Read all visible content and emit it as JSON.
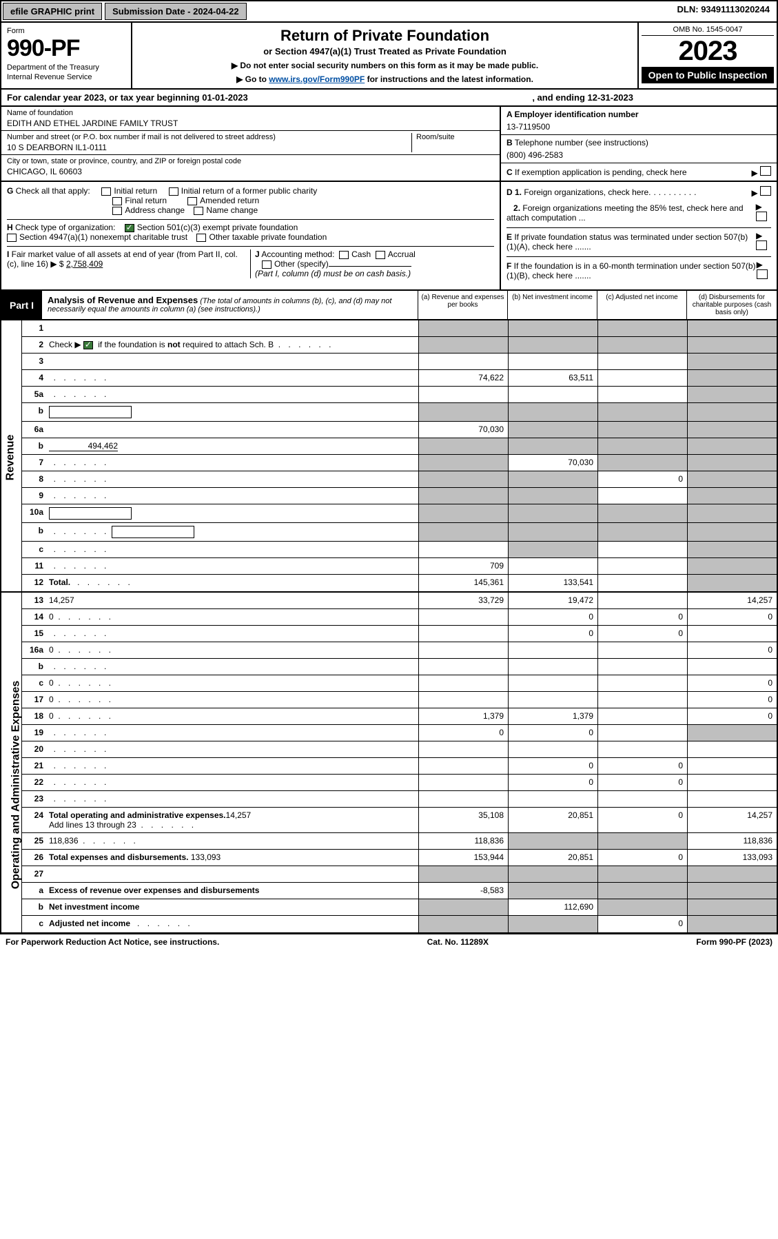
{
  "topbar": {
    "efile": "efile GRAPHIC print",
    "submission": "Submission Date - 2024-04-22",
    "dln": "DLN: 93491113020244"
  },
  "header": {
    "form_label": "Form",
    "form_number": "990-PF",
    "dept": "Department of the Treasury",
    "irs": "Internal Revenue Service",
    "title": "Return of Private Foundation",
    "subtitle": "or Section 4947(a)(1) Trust Treated as Private Foundation",
    "warn": "▶ Do not enter social security numbers on this form as it may be made public.",
    "goto_pre": "▶ Go to ",
    "goto_link": "www.irs.gov/Form990PF",
    "goto_post": " for instructions and the latest information.",
    "omb": "OMB No. 1545-0047",
    "year": "2023",
    "open": "Open to Public Inspection"
  },
  "calrow": {
    "text1": "For calendar year 2023, or tax year beginning 01-01-2023",
    "text2": ", and ending 12-31-2023"
  },
  "id": {
    "name_lbl": "Name of foundation",
    "name": "EDITH AND ETHEL JARDINE FAMILY TRUST",
    "addr_lbl": "Number and street (or P.O. box number if mail is not delivered to street address)",
    "room_lbl": "Room/suite",
    "addr": "10 S DEARBORN IL1-0111",
    "city_lbl": "City or town, state or province, country, and ZIP or foreign postal code",
    "city": "CHICAGO, IL  60603",
    "a_lbl": "A Employer identification number",
    "a_val": "13-7119500",
    "b_lbl": "B",
    "b_txt": " Telephone number (see instructions)",
    "b_val": "(800) 496-2583",
    "c_lbl": "C",
    "c_txt": " If exemption application is pending, check here"
  },
  "gh": {
    "g_lbl": "G",
    "g_txt": " Check all that apply:",
    "g1": "Initial return",
    "g2": "Initial return of a former public charity",
    "g3": "Final return",
    "g4": "Amended return",
    "g5": "Address change",
    "g6": "Name change",
    "h_lbl": "H",
    "h_txt": " Check type of organization:",
    "h1": "Section 501(c)(3) exempt private foundation",
    "h2": "Section 4947(a)(1) nonexempt charitable trust",
    "h3": "Other taxable private foundation",
    "i_lbl": "I",
    "i_txt": " Fair market value of all assets at end of year (from Part II, col. (c), line 16) ▶ $",
    "i_val": "2,758,409",
    "j_lbl": "J",
    "j_txt": " Accounting method:",
    "j1": "Cash",
    "j2": "Accrual",
    "j3": "Other (specify)",
    "j_note": "(Part I, column (d) must be on cash basis.)",
    "d1_lbl": "D 1.",
    "d1_txt": " Foreign organizations, check here",
    "d2_lbl": "2.",
    "d2_txt": " Foreign organizations meeting the 85% test, check here and attach computation ...",
    "e_lbl": "E",
    "e_txt": " If private foundation status was terminated under section 507(b)(1)(A), check here .......",
    "f_lbl": "F",
    "f_txt": " If the foundation is in a 60-month termination under section 507(b)(1)(B), check here ......."
  },
  "part1": {
    "label": "Part I",
    "title": "Analysis of Revenue and Expenses",
    "note": " (The total of amounts in columns (b), (c), and (d) may not necessarily equal the amounts in column (a) (see instructions).)",
    "col_a": "(a)  Revenue and expenses per books",
    "col_b": "(b)  Net investment income",
    "col_c": "(c)  Adjusted net income",
    "col_d": "(d)  Disbursements for charitable purposes (cash basis only)"
  },
  "rev_label": "Revenue",
  "exp_label": "Operating and Administrative Expenses",
  "rows": {
    "r1": {
      "n": "1",
      "d": "",
      "a": "",
      "b": "",
      "c": "",
      "ga": true,
      "gb": true,
      "gc": true,
      "gd": true
    },
    "r2": {
      "n": "2",
      "d_pre": "Check ▶ ",
      "d_post": " if the foundation is ",
      "d_bold": "not",
      "d_post2": " required to attach Sch. B",
      "dots": 1,
      "a": "",
      "b": "",
      "c": "",
      "d": "",
      "ga": true,
      "gb": true,
      "gc": true,
      "gd": true,
      "check": true
    },
    "r3": {
      "n": "3",
      "d": "",
      "a": "",
      "b": "",
      "c": "",
      "gd": true
    },
    "r4": {
      "n": "4",
      "d": "",
      "dots": 1,
      "a": "74,622",
      "b": "63,511",
      "c": "",
      "gd": true
    },
    "r5a": {
      "n": "5a",
      "d": "",
      "dots": 1,
      "a": "",
      "b": "",
      "c": "",
      "gd": true
    },
    "r5b": {
      "n": "b",
      "d": "",
      "inset": 120,
      "a": "",
      "b": "",
      "c": "",
      "ga": true,
      "gb": true,
      "gc": true,
      "gd": true
    },
    "r6a": {
      "n": "6a",
      "d": "",
      "a": "70,030",
      "b": "",
      "c": "",
      "gb": true,
      "gc": true,
      "gd": true
    },
    "r6b": {
      "n": "b",
      "d": "",
      "inset_val": "494,462",
      "a": "",
      "b": "",
      "c": "",
      "ga": true,
      "gb": true,
      "gc": true,
      "gd": true
    },
    "r7": {
      "n": "7",
      "d": "",
      "dots": 1,
      "a": "",
      "b": "70,030",
      "c": "",
      "ga": true,
      "gc": true,
      "gd": true
    },
    "r8": {
      "n": "8",
      "d": "",
      "dots": 1,
      "a": "",
      "b": "",
      "c": "0",
      "ga": true,
      "gb": true,
      "gd": true
    },
    "r9": {
      "n": "9",
      "d": "",
      "dots": 1,
      "a": "",
      "b": "",
      "c": "",
      "ga": true,
      "gb": true,
      "gd": true
    },
    "r10a": {
      "n": "10a",
      "d": "",
      "inset": 120,
      "a": "",
      "b": "",
      "c": "",
      "ga": true,
      "gb": true,
      "gc": true,
      "gd": true
    },
    "r10b": {
      "n": "b",
      "d": "",
      "dots": 1,
      "inset": 120,
      "a": "",
      "b": "",
      "c": "",
      "ga": true,
      "gb": true,
      "gc": true,
      "gd": true
    },
    "r10c": {
      "n": "c",
      "d": "",
      "dots": 1,
      "a": "",
      "b": "",
      "c": "",
      "gb": true,
      "gd": true
    },
    "r11": {
      "n": "11",
      "d": "",
      "dots": 1,
      "a": "709",
      "b": "",
      "c": "",
      "gd": true
    },
    "r12": {
      "n": "12",
      "d_bold_all": "Total. ",
      "d": "",
      "dots": 1,
      "a": "145,361",
      "b": "133,541",
      "c": "",
      "gd": true
    },
    "r13": {
      "n": "13",
      "d": "14,257",
      "a": "33,729",
      "b": "19,472",
      "c": ""
    },
    "r14": {
      "n": "14",
      "d": "0",
      "dots": 1,
      "a": "",
      "b": "0",
      "c": "0"
    },
    "r15": {
      "n": "15",
      "d": "",
      "dots": 1,
      "a": "",
      "b": "0",
      "c": "0"
    },
    "r16a": {
      "n": "16a",
      "d": "0",
      "dots": 1,
      "a": "",
      "b": "",
      "c": ""
    },
    "r16b": {
      "n": "b",
      "d": "",
      "dots": 1,
      "a": "",
      "b": "",
      "c": ""
    },
    "r16c": {
      "n": "c",
      "d": "0",
      "dots": 1,
      "a": "",
      "b": "",
      "c": ""
    },
    "r17": {
      "n": "17",
      "d": "0",
      "dots": 1,
      "a": "",
      "b": "",
      "c": ""
    },
    "r18": {
      "n": "18",
      "d": "0",
      "dots": 1,
      "a": "1,379",
      "b": "1,379",
      "c": ""
    },
    "r19": {
      "n": "19",
      "d": "",
      "dots": 1,
      "a": "0",
      "b": "0",
      "c": "",
      "gd": true
    },
    "r20": {
      "n": "20",
      "d": "",
      "dots": 1,
      "a": "",
      "b": "",
      "c": ""
    },
    "r21": {
      "n": "21",
      "d": "",
      "dots": 1,
      "a": "",
      "b": "0",
      "c": "0"
    },
    "r22": {
      "n": "22",
      "d": "",
      "dots": 1,
      "a": "",
      "b": "0",
      "c": "0"
    },
    "r23": {
      "n": "23",
      "d": "",
      "dots": 1,
      "a": "",
      "b": "",
      "c": ""
    },
    "r24": {
      "n": "24",
      "d_bold_all": "Total operating and administrative expenses.",
      "d2": "Add lines 13 through 23",
      "dots": 1,
      "a": "35,108",
      "b": "20,851",
      "c": "0",
      "d": "14,257"
    },
    "r25": {
      "n": "25",
      "d": "118,836",
      "dots": 1,
      "a": "118,836",
      "b": "",
      "c": "",
      "gb": true,
      "gc": true
    },
    "r26": {
      "n": "26",
      "d_bold_all": "Total expenses and disbursements. ",
      "d": "133,093",
      "a": "153,944",
      "b": "20,851",
      "c": "0"
    },
    "r27": {
      "n": "27",
      "d": "",
      "a": "",
      "b": "",
      "c": "",
      "ga": true,
      "gb": true,
      "gc": true,
      "gd": true
    },
    "r27a": {
      "n": "a",
      "d_bold_all": "Excess of revenue over expenses and disbursements",
      "a": "-8,583",
      "b": "",
      "c": "",
      "d": "",
      "gb": true,
      "gc": true,
      "gd": true
    },
    "r27b": {
      "n": "b",
      "d_bold_all": "Net investment income ",
      "d": "",
      "a": "",
      "b": "112,690",
      "c": "",
      "ga": true,
      "gc": true,
      "gd": true
    },
    "r27c": {
      "n": "c",
      "d_bold_all": "Adjusted net income ",
      "d": "",
      "dots": 1,
      "a": "",
      "b": "",
      "c": "0",
      "ga": true,
      "gb": true,
      "gd": true
    }
  },
  "footer": {
    "left": "For Paperwork Reduction Act Notice, see instructions.",
    "mid": "Cat. No. 11289X",
    "right": "Form 990-PF (2023)"
  },
  "colors": {
    "grey": "#bfbfbf",
    "link": "#004fa3",
    "check": "#3a7a3a"
  }
}
